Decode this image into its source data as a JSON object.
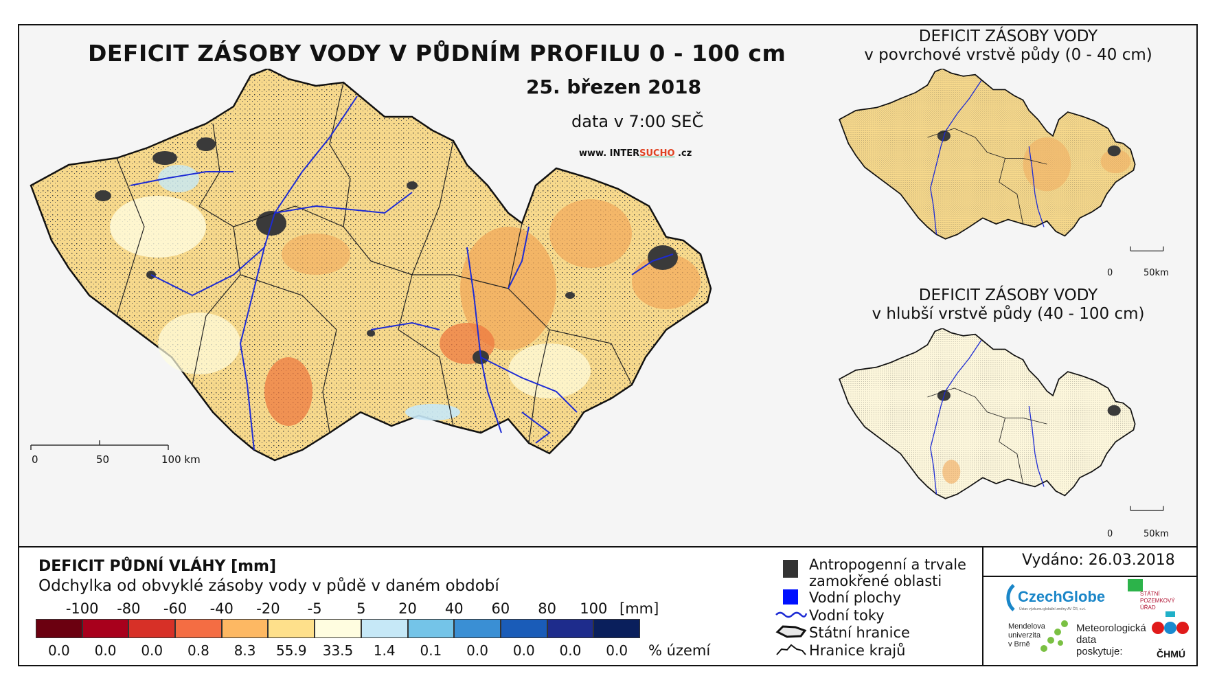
{
  "main_map": {
    "title": "DEFICIT ZÁSOBY VODY V PŮDNÍM PROFILU 0 - 100 cm",
    "date": "25. březen 2018",
    "time": "data v 7:00 SEČ",
    "website_prefix": "www. INTER",
    "website_highlight": "SUCHO",
    "website_suffix": " .cz",
    "scale_labels": [
      "0",
      "50",
      "100 km"
    ]
  },
  "inset_top": {
    "title_line1": "DEFICIT ZÁSOBY VODY",
    "title_line2": "v povrchové vrstvě půdy (0 - 40 cm)",
    "scale_labels": [
      "0",
      "50km"
    ]
  },
  "inset_bottom": {
    "title_line1": "DEFICIT ZÁSOBY VODY",
    "title_line2": "v hlubší vrstvě půdy (40 - 100 cm)",
    "scale_labels": [
      "0",
      "50km"
    ]
  },
  "legend": {
    "title": "DEFICIT PŮDNÍ VLÁHY [mm]",
    "subtitle": "Odchylka od obvyklé zásoby vody v půdě v daném období",
    "unit": "[mm]",
    "percent_unit": "% území",
    "ticks": [
      "-100",
      "-80",
      "-60",
      "-40",
      "-20",
      "-5",
      "5",
      "20",
      "40",
      "60",
      "80",
      "100"
    ],
    "colors": [
      "#6b0010",
      "#a8001c",
      "#d73027",
      "#f46d43",
      "#fdb863",
      "#fee08b",
      "#fffde0",
      "#c6e8f7",
      "#74c4e8",
      "#3a8fd4",
      "#1a5cb8",
      "#1e2c8c",
      "#0a1f5c"
    ],
    "percentages": [
      "0.0",
      "0.0",
      "0.0",
      "0.8",
      "8.3",
      "55.9",
      "33.5",
      "1.4",
      "0.1",
      "0.0",
      "0.0",
      "0.0",
      "0.0"
    ]
  },
  "symbols": {
    "anthropogenic": "Antropogenní a trvale",
    "anthropogenic2": "zamokřené oblasti",
    "water_bodies": "Vodní plochy",
    "water_courses": "Vodní toky",
    "state_border": "Státní hranice",
    "region_border": "Hranice krajů"
  },
  "issued": "Vydáno: 26.03.2018",
  "logos": {
    "czechglobe": "CzechGlobe",
    "czechglobe_sub": "Ústav výzkumu globální změny AV ČR, v.v.i.",
    "spu_line1": "STÁTNÍ",
    "spu_line2": "POZEMKOVÝ",
    "spu_line3": "ÚŘAD",
    "mendelu_line1": "Mendelova",
    "mendelu_line2": "univerzita",
    "mendelu_line3": "v Brně",
    "met_line1": "Meteorologická",
    "met_line2": "data",
    "met_line3": "poskytuje:",
    "chmu": "ČHMÚ"
  }
}
